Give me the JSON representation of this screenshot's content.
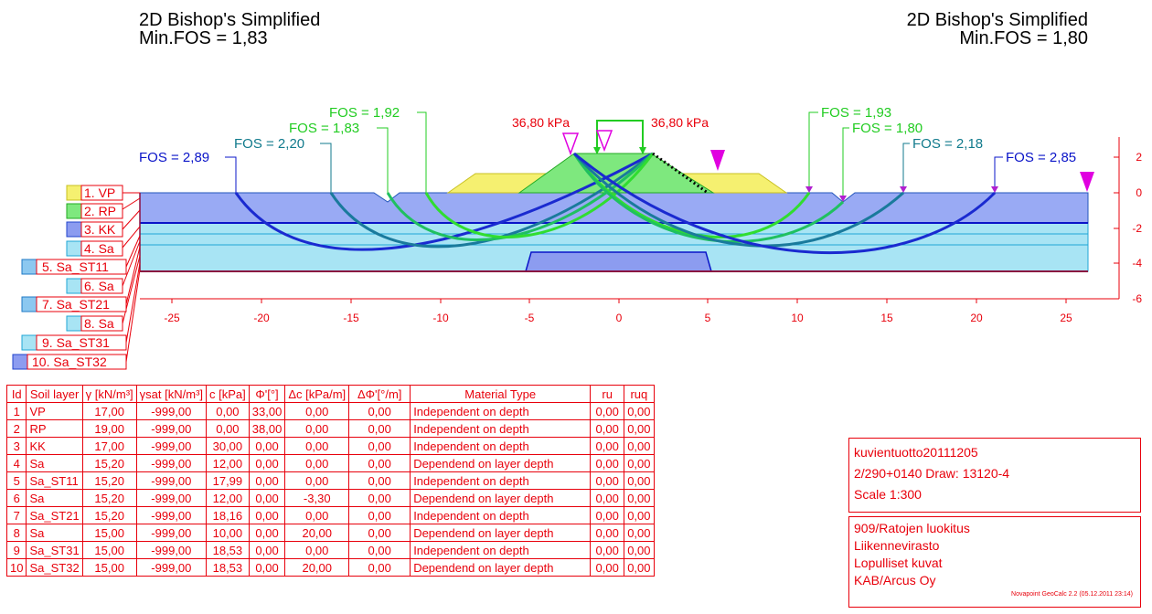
{
  "titles": {
    "left": {
      "line1": "2D Bishop's Simplified",
      "line2": "Min.FOS = 1,83"
    },
    "right": {
      "line1": "2D Bishop's Simplified",
      "line2": "Min.FOS = 1,80"
    }
  },
  "loads": {
    "left": "36,80 kPa",
    "right": "36,80 kPa"
  },
  "fos_labels": [
    {
      "text": "FOS = 2,89",
      "color": "#0a14c8"
    },
    {
      "text": "FOS = 2,20",
      "color": "#107a8c"
    },
    {
      "text": "FOS = 1,83",
      "color": "#22cc22"
    },
    {
      "text": "FOS = 1,92",
      "color": "#22cc22"
    },
    {
      "text": "FOS = 1,93",
      "color": "#22cc22"
    },
    {
      "text": "FOS = 1,80",
      "color": "#22cc22"
    },
    {
      "text": "FOS = 2,18",
      "color": "#107a8c"
    },
    {
      "text": "FOS = 2,85",
      "color": "#0a14c8"
    }
  ],
  "x_ticks": [
    "-25",
    "-20",
    "-15",
    "-10",
    "-5",
    "0",
    "5",
    "10",
    "15",
    "20",
    "25"
  ],
  "y_ticks": [
    "2",
    "0",
    "-2",
    "-4",
    "-6"
  ],
  "legend": [
    {
      "label": "1. VP",
      "color": "#f5f070"
    },
    {
      "label": "2. RP",
      "color": "#7ee87e"
    },
    {
      "label": "3. KK",
      "color": "#8c9cf0"
    },
    {
      "label": "4. Sa",
      "color": "#a8e4f4"
    },
    {
      "label": "5. Sa_ST11",
      "color": "#8cc8f0"
    },
    {
      "label": "6. Sa",
      "color": "#a8e4f4"
    },
    {
      "label": "7. Sa_ST21",
      "color": "#8cc8f0"
    },
    {
      "label": "8. Sa",
      "color": "#a8e4f4"
    },
    {
      "label": "9. Sa_ST31",
      "color": "#a8e4f4"
    },
    {
      "label": "10. Sa_ST32",
      "color": "#8c9cf0"
    }
  ],
  "table": {
    "headers": [
      "Id",
      "Soil layer",
      "γ [kN/m³]",
      "γsat [kN/m³]",
      "c [kPa]",
      "Φ'[°]",
      "Δc [kPa/m]",
      "ΔΦ'[°/m]",
      "Material Type",
      "ru",
      "ruq"
    ],
    "rows": [
      [
        "1",
        "VP",
        "17,00",
        "-999,00",
        "0,00",
        "33,00",
        "0,00",
        "0,00",
        "Independent on depth",
        "0,00",
        "0,00"
      ],
      [
        "2",
        "RP",
        "19,00",
        "-999,00",
        "0,00",
        "38,00",
        "0,00",
        "0,00",
        "Independent on depth",
        "0,00",
        "0,00"
      ],
      [
        "3",
        "KK",
        "17,00",
        "-999,00",
        "30,00",
        "0,00",
        "0,00",
        "0,00",
        "Independent on depth",
        "0,00",
        "0,00"
      ],
      [
        "4",
        "Sa",
        "15,20",
        "-999,00",
        "12,00",
        "0,00",
        "0,00",
        "0,00",
        "Dependend on layer depth",
        "0,00",
        "0,00"
      ],
      [
        "5",
        "Sa_ST11",
        "15,20",
        "-999,00",
        "17,99",
        "0,00",
        "0,00",
        "0,00",
        "Independent on depth",
        "0,00",
        "0,00"
      ],
      [
        "6",
        "Sa",
        "15,20",
        "-999,00",
        "12,00",
        "0,00",
        "-3,30",
        "0,00",
        "Dependend on layer depth",
        "0,00",
        "0,00"
      ],
      [
        "7",
        "Sa_ST21",
        "15,20",
        "-999,00",
        "18,16",
        "0,00",
        "0,00",
        "0,00",
        "Independent on depth",
        "0,00",
        "0,00"
      ],
      [
        "8",
        "Sa",
        "15,00",
        "-999,00",
        "10,00",
        "0,00",
        "20,00",
        "0,00",
        "Dependend on layer depth",
        "0,00",
        "0,00"
      ],
      [
        "9",
        "Sa_ST31",
        "15,00",
        "-999,00",
        "18,53",
        "0,00",
        "0,00",
        "0,00",
        "Independent on depth",
        "0,00",
        "0,00"
      ],
      [
        "10",
        "Sa_ST32",
        "15,00",
        "-999,00",
        "18,53",
        "0,00",
        "20,00",
        "0,00",
        "Dependend on layer depth",
        "0,00",
        "0,00"
      ]
    ]
  },
  "info1": [
    "kuvientuotto20111205",
    "2/290+0140  Draw: 13120-4",
    "Scale  1:300"
  ],
  "info2": [
    "909/Ratojen luokitus",
    "Liikennevirasto",
    "Lopulliset kuvat",
    "KAB/Arcus Oy"
  ],
  "credit": "Novapoint GeoCalc 2.2  (05.12.2011 23:14)"
}
